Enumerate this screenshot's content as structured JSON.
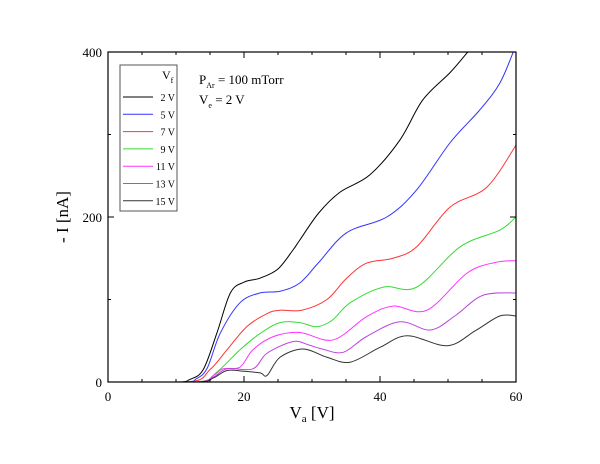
{
  "chart_data": {
    "type": "line",
    "xlabel": {
      "main": "V",
      "sub": "a",
      "unit": " [V]"
    },
    "ylabel": "- I [nA]",
    "xlim": [
      0,
      60
    ],
    "ylim": [
      0,
      400
    ],
    "x_ticks": [
      0,
      20,
      40,
      60
    ],
    "y_ticks": [
      0,
      200,
      400
    ],
    "grid": false,
    "legend": {
      "placement": "top-left",
      "title_main": "V",
      "title_sub": "f"
    },
    "annotations": {
      "pressure_main": "P",
      "pressure_sub": "Ar",
      "pressure_value": " = 100 mTorr",
      "ve_main": "V",
      "ve_sub": "e",
      "ve_value": " = 2 V"
    },
    "series": [
      {
        "name": "2 V",
        "color": "#000000",
        "points": [
          [
            0,
            0
          ],
          [
            10,
            0
          ],
          [
            12,
            3
          ],
          [
            14,
            15
          ],
          [
            16,
            59
          ],
          [
            18,
            108
          ],
          [
            20,
            121
          ],
          [
            22.4,
            126
          ],
          [
            25,
            137
          ],
          [
            27.2,
            160
          ],
          [
            28.2,
            172
          ],
          [
            31,
            205
          ],
          [
            34.1,
            230
          ],
          [
            38.5,
            251
          ],
          [
            42.9,
            293
          ],
          [
            46.3,
            342
          ],
          [
            50.3,
            375
          ],
          [
            52.9,
            400
          ]
        ]
      },
      {
        "name": "5 V",
        "color": "#3333ff",
        "points": [
          [
            0,
            0
          ],
          [
            11,
            0
          ],
          [
            13,
            4
          ],
          [
            14.6,
            17
          ],
          [
            16.5,
            59
          ],
          [
            19.4,
            96
          ],
          [
            22.4,
            108
          ],
          [
            25.3,
            110
          ],
          [
            28.2,
            120
          ],
          [
            31,
            145
          ],
          [
            35.1,
            181
          ],
          [
            41,
            200
          ],
          [
            45.4,
            233
          ],
          [
            50.3,
            290
          ],
          [
            54.7,
            330
          ],
          [
            57.6,
            362
          ],
          [
            59.6,
            400
          ]
        ]
      },
      {
        "name": "7 V",
        "color": "#ff3333",
        "points": [
          [
            0,
            0
          ],
          [
            12,
            0
          ],
          [
            15,
            15
          ],
          [
            17.5,
            39
          ],
          [
            20.4,
            67
          ],
          [
            23.4,
            83
          ],
          [
            25.3,
            87
          ],
          [
            28.5,
            87
          ],
          [
            32.2,
            100
          ],
          [
            35,
            125
          ],
          [
            38,
            144
          ],
          [
            41.9,
            150
          ],
          [
            45.4,
            164
          ],
          [
            50.3,
            212
          ],
          [
            55.7,
            236
          ],
          [
            60,
            287
          ]
        ]
      },
      {
        "name": "9 V",
        "color": "#33dd33",
        "points": [
          [
            0,
            0
          ],
          [
            13,
            0
          ],
          [
            16,
            12
          ],
          [
            19.4,
            39
          ],
          [
            22.4,
            59
          ],
          [
            25.3,
            72
          ],
          [
            28.2,
            72
          ],
          [
            30.7,
            67
          ],
          [
            33,
            75
          ],
          [
            35.6,
            96
          ],
          [
            40.5,
            115
          ],
          [
            45.4,
            115
          ],
          [
            51.8,
            164
          ],
          [
            57.6,
            184
          ],
          [
            60,
            200
          ]
        ]
      },
      {
        "name": "11 V",
        "color": "#ff33ff",
        "points": [
          [
            0,
            0
          ],
          [
            13,
            0
          ],
          [
            15.5,
            8
          ],
          [
            16.9,
            16
          ],
          [
            19.4,
            18
          ],
          [
            21.3,
            39
          ],
          [
            24.3,
            55
          ],
          [
            28.2,
            60
          ],
          [
            33.1,
            51
          ],
          [
            38,
            79
          ],
          [
            41.9,
            92
          ],
          [
            46.9,
            87
          ],
          [
            52.8,
            132
          ],
          [
            57,
            145
          ],
          [
            60,
            147
          ]
        ]
      },
      {
        "name": "13 V",
        "color": "#bb44dd",
        "points": [
          [
            0,
            0
          ],
          [
            13,
            0
          ],
          [
            15.5,
            6
          ],
          [
            17.5,
            16
          ],
          [
            21.3,
            16
          ],
          [
            23.4,
            35
          ],
          [
            27.2,
            49
          ],
          [
            29.5,
            45
          ],
          [
            31.5,
            40
          ],
          [
            34.6,
            36
          ],
          [
            38,
            55
          ],
          [
            42.9,
            73
          ],
          [
            47.4,
            63
          ],
          [
            51,
            80
          ],
          [
            55.1,
            105
          ],
          [
            60,
            108
          ]
        ]
      },
      {
        "name": "15 V",
        "color": "#333333",
        "points": [
          [
            0,
            0
          ],
          [
            13,
            0
          ],
          [
            15.5,
            5
          ],
          [
            17.5,
            14
          ],
          [
            20,
            13
          ],
          [
            22.4,
            11
          ],
          [
            23.4,
            8
          ],
          [
            25.3,
            30
          ],
          [
            28.7,
            40
          ],
          [
            32.2,
            30
          ],
          [
            35.6,
            24
          ],
          [
            40,
            42
          ],
          [
            44,
            56
          ],
          [
            49.9,
            44
          ],
          [
            54,
            62
          ],
          [
            57.6,
            80
          ],
          [
            60,
            80
          ]
        ]
      }
    ]
  }
}
